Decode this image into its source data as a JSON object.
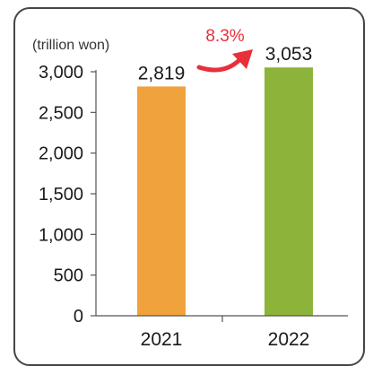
{
  "chart_data": {
    "type": "bar",
    "unit_label": "(trillion won)",
    "categories": [
      "2021",
      "2022"
    ],
    "values": [
      2819,
      3053
    ],
    "data_labels": [
      "2,819",
      "3,053"
    ],
    "bar_colors": [
      "#f0a33c",
      "#8db33a"
    ],
    "yticks": [
      0,
      500,
      1000,
      1500,
      2000,
      2500,
      3000
    ],
    "ytick_labels": [
      "0",
      "500",
      "1,000",
      "1,500",
      "2,000",
      "2,500",
      "3,000"
    ],
    "ylim": [
      0,
      3000
    ],
    "growth_annotation": {
      "text": "8.3%",
      "color": "#e8303a"
    },
    "grid": false
  }
}
